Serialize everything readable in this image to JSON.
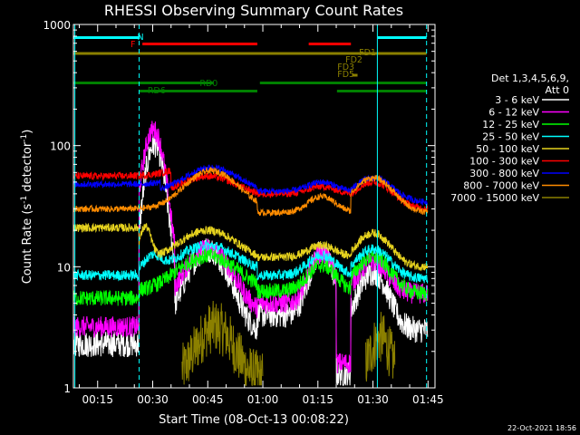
{
  "chart_data": {
    "type": "line",
    "title": "RHESSI Observing Summary Count Rates",
    "xlabel": "Start Time (08-Oct-13 00:08:22)",
    "ylabel_main": "Count Rate (s",
    "ylabel_sup1": "-1",
    "ylabel_mid": " detector",
    "ylabel_sup2": "-1",
    "ylabel_end": ")",
    "yscale": "log",
    "xlim_minutes": [
      8.4,
      106.9
    ],
    "ylim": [
      1,
      1000
    ],
    "x_ticks": [
      {
        "t": 15,
        "label": "00:15"
      },
      {
        "t": 30,
        "label": "00:30"
      },
      {
        "t": 45,
        "label": "00:45"
      },
      {
        "t": 60,
        "label": "01:00"
      },
      {
        "t": 75,
        "label": "01:15"
      },
      {
        "t": 90,
        "label": "01:30"
      },
      {
        "t": 105,
        "label": "01:45"
      }
    ],
    "y_ticks": [
      {
        "v": 1,
        "label": "1"
      },
      {
        "v": 10,
        "label": "10"
      },
      {
        "v": 100,
        "label": "100"
      },
      {
        "v": 1000,
        "label": "1000"
      }
    ],
    "legend_header": [
      "Det 1,3,4,5,6,9,",
      "Att 0"
    ],
    "series": [
      {
        "name": "3 - 6 keV",
        "color": "#ffffff"
      },
      {
        "name": "6 - 12 keV",
        "color": "#ff00ff"
      },
      {
        "name": "12 - 25 keV",
        "color": "#00ff00"
      },
      {
        "name": "25 - 50 keV",
        "color": "#00ffff"
      },
      {
        "name": "50 - 100 keV",
        "color": "#e6d21e"
      },
      {
        "name": "100 - 300 keV",
        "color": "#ff0000"
      },
      {
        "name": "300 - 800 keV",
        "color": "#0000ff"
      },
      {
        "name": "800 - 7000 keV",
        "color": "#ff8c00"
      },
      {
        "name": "7000 - 15000 keV",
        "color": "#8b8000"
      }
    ],
    "flag_bars": [
      {
        "label": "N",
        "color": "#00ffff",
        "segments": [
          [
            8.4,
            26.5
          ],
          [
            91.3,
            104.6
          ]
        ]
      },
      {
        "label": "F",
        "color": "#ff0000",
        "segments": [
          [
            27.2,
            58.5
          ],
          [
            72.5,
            84.0
          ]
        ]
      },
      {
        "label": "FD1",
        "color": "#8b8000",
        "segments": [
          [
            8.4,
            104.6
          ]
        ]
      },
      {
        "label": "FD2",
        "color": "#8b8000",
        "segments": []
      },
      {
        "label": "FD3",
        "color": "#8b8000",
        "segments": []
      },
      {
        "label": "FD5",
        "color": "#8b8000",
        "segments": [
          [
            84.3,
            85.8
          ]
        ]
      },
      {
        "label": "RD0",
        "color": "#008000",
        "segments": [
          [
            8.4,
            46.4
          ],
          [
            59.2,
            104.6
          ]
        ]
      },
      {
        "label": "RD6",
        "color": "#008000",
        "segments": [
          [
            26.3,
            58.5
          ],
          [
            80.2,
            104.6
          ]
        ]
      }
    ],
    "vertical_markers": [
      {
        "t": 8.8,
        "color": "#00ffff",
        "style": "solid"
      },
      {
        "t": 26.3,
        "color": "#00ffff",
        "style": "dashed"
      },
      {
        "t": 91.2,
        "color": "#00ffff",
        "style": "solid"
      },
      {
        "t": 104.6,
        "color": "#00ffff",
        "style": "dashed"
      }
    ],
    "footer": "22-Oct-2021 18:56"
  }
}
